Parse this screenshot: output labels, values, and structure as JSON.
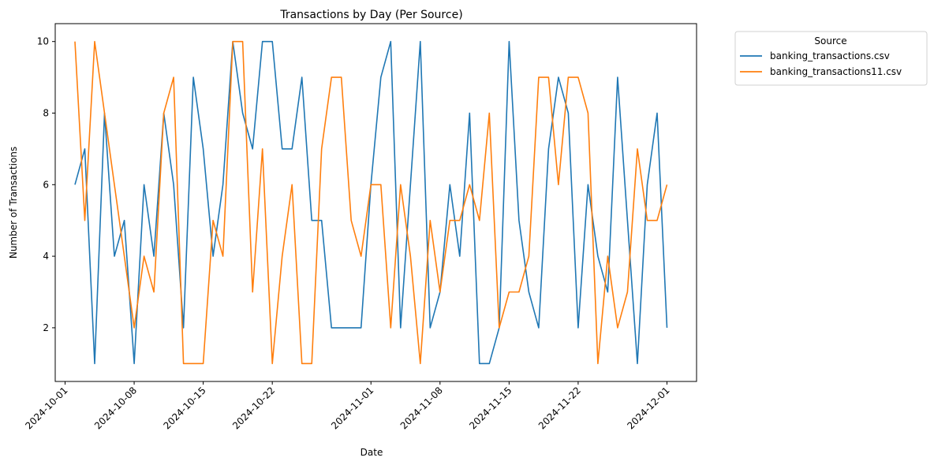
{
  "chart_data": {
    "type": "line",
    "title": "Transactions by Day (Per Source)",
    "xlabel": "Date",
    "ylabel": "Number of Transactions",
    "x_start": "2024-10-02",
    "xlim": [
      "2024-09-30",
      "2024-12-04"
    ],
    "ylim": [
      0.5,
      10.5
    ],
    "xticks": [
      "2024-10-01",
      "2024-10-08",
      "2024-10-15",
      "2024-10-22",
      "2024-11-01",
      "2024-11-08",
      "2024-11-15",
      "2024-11-22",
      "2024-12-01"
    ],
    "yticks": [
      2,
      4,
      6,
      8,
      10
    ],
    "grid": false,
    "legend": {
      "title": "Source",
      "placement": "outside-top-right"
    },
    "series": [
      {
        "name": "banking_transactions.csv",
        "color": "#1f77b4",
        "values": [
          6,
          7,
          1,
          8,
          4,
          5,
          1,
          6,
          4,
          8,
          6,
          2,
          9,
          7,
          4,
          6,
          10,
          8,
          7,
          10,
          10,
          7,
          7,
          9,
          5,
          5,
          2,
          2,
          2,
          2,
          6,
          9,
          10,
          2,
          6,
          10,
          2,
          3,
          6,
          4,
          8,
          1,
          1,
          2,
          10,
          5,
          3,
          2,
          7,
          9,
          8,
          2,
          6,
          4,
          3,
          9,
          5,
          1,
          6,
          8,
          2
        ]
      },
      {
        "name": "banking_transactions11.csv",
        "color": "#ff7f0e",
        "values": [
          10,
          5,
          10,
          8,
          6,
          4,
          2,
          4,
          3,
          8,
          9,
          1,
          1,
          1,
          5,
          4,
          10,
          10,
          3,
          7,
          1,
          4,
          6,
          1,
          1,
          7,
          9,
          9,
          5,
          4,
          6,
          6,
          2,
          6,
          4,
          1,
          5,
          3,
          5,
          5,
          6,
          5,
          8,
          2,
          3,
          3,
          4,
          9,
          9,
          6,
          9,
          9,
          8,
          1,
          4,
          2,
          3,
          7,
          5,
          5,
          6
        ]
      }
    ]
  }
}
